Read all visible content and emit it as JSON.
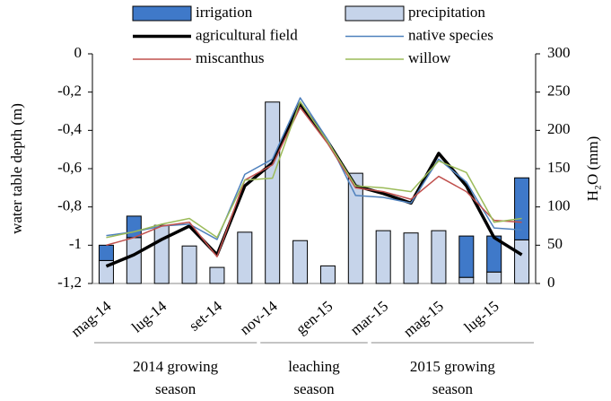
{
  "chart_data": {
    "type": "bar",
    "categories": [
      "mag-14",
      null,
      "lug-14",
      null,
      "set-14",
      null,
      "nov-14",
      null,
      "gen-15",
      null,
      "mar-15",
      null,
      "mag-15",
      null,
      "lug-15",
      null
    ],
    "series": [
      {
        "name": "precipitation",
        "type": "bar",
        "axis": "y2",
        "color": "#c6d4ea",
        "values": [
          30,
          60,
          76,
          49,
          21,
          67,
          237,
          56,
          23,
          144,
          69,
          66,
          69,
          8,
          15,
          57
        ]
      },
      {
        "name": "irrigation",
        "type": "bar",
        "axis": "y2",
        "color": "#3f79c9",
        "values": [
          20,
          28,
          0,
          0,
          0,
          0,
          0,
          0,
          0,
          0,
          0,
          0,
          0,
          54,
          47,
          81
        ]
      },
      {
        "name": "agricultural field",
        "type": "line",
        "color": "#000000",
        "values": [
          -1.11,
          -1.05,
          -0.97,
          -0.9,
          -1.05,
          -0.69,
          -0.57,
          -0.26,
          -0.46,
          -0.69,
          -0.73,
          -0.78,
          -0.52,
          -0.69,
          -0.96,
          -1.05
        ]
      },
      {
        "name": "native species",
        "type": "line",
        "color": "#4f81bd",
        "values": [
          -0.95,
          -0.93,
          -0.9,
          -0.89,
          -0.97,
          -0.63,
          -0.55,
          -0.23,
          -0.45,
          -0.74,
          -0.75,
          -0.78,
          -0.55,
          -0.67,
          -0.91,
          -0.92
        ]
      },
      {
        "name": "miscanthus",
        "type": "line",
        "color": "#c0504d",
        "values": [
          -1.0,
          -0.96,
          -0.9,
          -0.88,
          -1.06,
          -0.66,
          -0.58,
          -0.28,
          -0.47,
          -0.7,
          -0.72,
          -0.76,
          -0.64,
          -0.72,
          -0.87,
          -0.88
        ]
      },
      {
        "name": "willow",
        "type": "line",
        "color": "#9bbb59",
        "values": [
          -0.96,
          -0.93,
          -0.89,
          -0.86,
          -0.96,
          -0.66,
          -0.65,
          -0.25,
          -0.46,
          -0.69,
          -0.7,
          -0.72,
          -0.56,
          -0.62,
          -0.88,
          -0.86
        ]
      }
    ],
    "ylabel": "water table depth (m)",
    "y2label": "H₂O (mm)",
    "ylim": [
      -1.2,
      0
    ],
    "yticks": [
      {
        "value": -1.2,
        "label": "-1,2"
      },
      -1,
      {
        "value": -0.8,
        "label": "-0,8"
      },
      {
        "value": -0.6,
        "label": "-0,6"
      },
      {
        "value": -0.4,
        "label": "-0,4"
      },
      {
        "value": -0.2,
        "label": "-0,2"
      },
      0
    ],
    "y2lim": [
      0,
      300
    ],
    "y2ticks": [
      0,
      50,
      100,
      150,
      200,
      250,
      300
    ],
    "groups": [
      {
        "lines": [
          "2014 growing",
          "season"
        ],
        "span": [
          0,
          5
        ]
      },
      {
        "lines": [
          "leaching",
          "season"
        ],
        "span": [
          6,
          9
        ]
      },
      {
        "lines": [
          "2015 growing",
          "season"
        ],
        "span": [
          10,
          15
        ]
      }
    ],
    "legend": "top"
  }
}
